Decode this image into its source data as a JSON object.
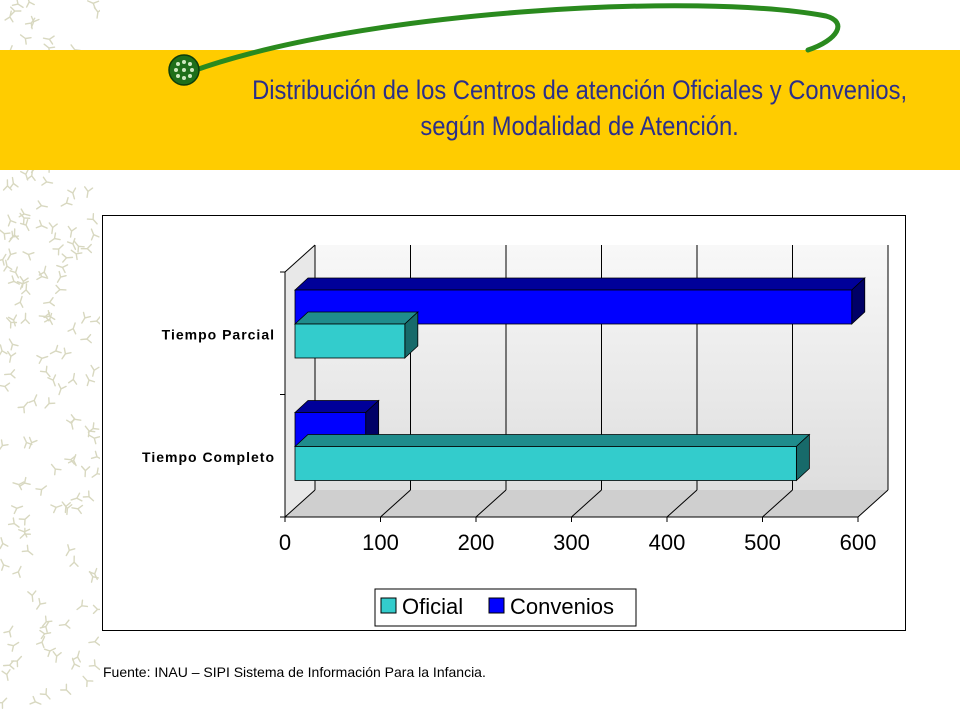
{
  "slide": {
    "title_line1": "Distribución de los Centros de atención Oficiales y Convenios,",
    "title_line2": "según Modalidad de Atención.",
    "source": "Fuente: INAU – SIPI Sistema de Información Para la Infancia."
  },
  "colors": {
    "band": "#ffcc00",
    "title": "#2b2f8a",
    "oficial": "#33cccc",
    "convenios": "#0000ff",
    "swoosh": "#2a8a1e"
  },
  "chart_data": {
    "type": "bar",
    "orientation": "horizontal",
    "three_d": true,
    "categories": [
      "Tiempo Parcial",
      "Tiempo Completo"
    ],
    "series": [
      {
        "name": "Oficial",
        "values": [
          115,
          525
        ]
      },
      {
        "name": "Convenios",
        "values": [
          583,
          74
        ]
      }
    ],
    "xlim": [
      0,
      600
    ],
    "ticks": [
      "0",
      "100",
      "200",
      "300",
      "400",
      "500",
      "600"
    ],
    "grid": true,
    "legend": "bottom"
  }
}
